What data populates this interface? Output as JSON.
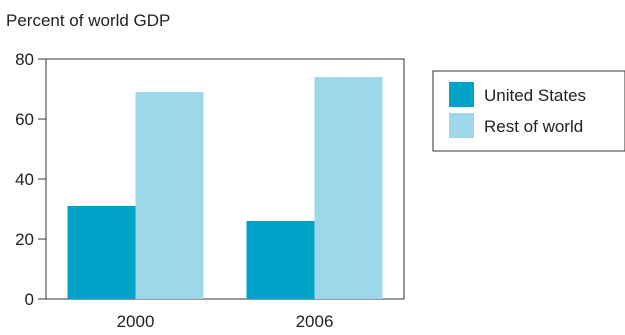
{
  "chart_data": {
    "type": "bar",
    "title": "",
    "ylabel": "Percent of world GDP",
    "xlabel": "",
    "categories": [
      "2000",
      "2006"
    ],
    "series": [
      {
        "name": "United States",
        "values": [
          31,
          26
        ],
        "color": "#00a3c8"
      },
      {
        "name": "Rest of world",
        "values": [
          69,
          74
        ],
        "color": "#9dd8ea"
      }
    ],
    "ylim": [
      0,
      80
    ],
    "yticks": [
      "0",
      "20",
      "40",
      "60",
      "80"
    ],
    "grid": false,
    "legend_position": "right"
  }
}
